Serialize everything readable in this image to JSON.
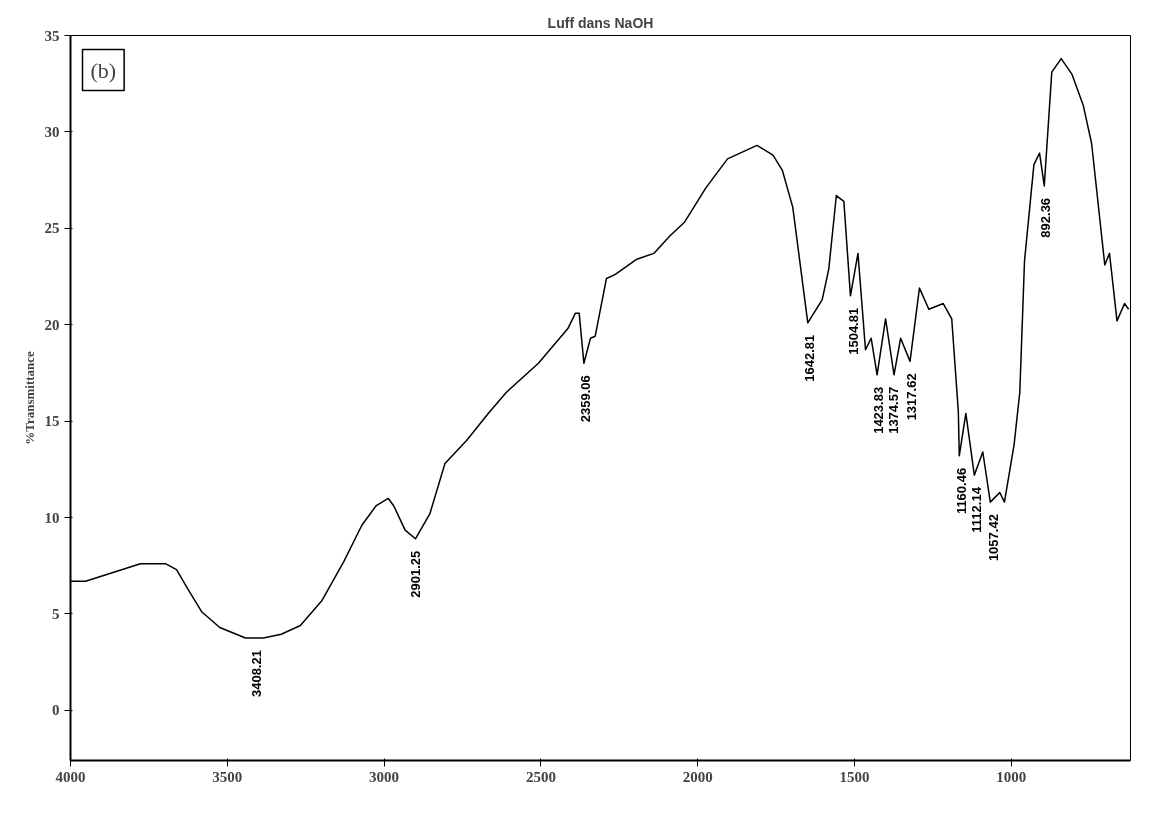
{
  "chart_data": {
    "type": "line",
    "title": "Luff dans NaOH",
    "ylabel": "%Transmittance",
    "x": [
      4000,
      3952,
      3777,
      3696,
      3662,
      3626,
      3581,
      3524,
      3442,
      3385,
      3328,
      3267,
      3198,
      3129,
      3071,
      3026,
      2987,
      2969,
      2933,
      2900,
      2854,
      2806,
      2737,
      2668,
      2610,
      2508,
      2414,
      2390,
      2378,
      2363,
      2342,
      2327,
      2291,
      2264,
      2194,
      2140,
      2089,
      2043,
      1974,
      1905,
      1811,
      1760,
      1730,
      1697,
      1649,
      1603,
      1582,
      1558,
      1534,
      1513,
      1489,
      1465,
      1447,
      1428,
      1401,
      1374,
      1353,
      1323,
      1293,
      1263,
      1217,
      1190,
      1169,
      1166,
      1145,
      1118,
      1091,
      1067,
      1037,
      1022,
      991,
      973,
      958,
      928,
      910,
      895,
      871,
      841,
      807,
      771,
      744,
      702,
      687,
      663,
      639,
      626
    ],
    "series": [
      {
        "color": "#000000",
        "values": [
          6.7,
          6.7,
          7.6,
          7.6,
          7.3,
          6.3,
          5.1,
          4.3,
          3.75,
          3.75,
          3.95,
          4.4,
          5.7,
          7.7,
          9.6,
          10.6,
          11.0,
          10.6,
          9.35,
          8.9,
          10.2,
          12.8,
          14.0,
          15.4,
          16.5,
          18.0,
          19.8,
          20.6,
          20.6,
          18.0,
          19.3,
          19.4,
          22.4,
          22.6,
          23.4,
          23.7,
          24.6,
          25.3,
          27.1,
          28.6,
          29.3,
          28.8,
          28.0,
          26.1,
          20.1,
          21.3,
          22.9,
          26.7,
          26.4,
          21.5,
          23.7,
          18.7,
          19.3,
          17.4,
          20.3,
          17.4,
          19.3,
          18.1,
          21.9,
          20.8,
          21.1,
          20.3,
          15.5,
          13.2,
          15.4,
          12.2,
          13.4,
          10.8,
          11.3,
          10.8,
          13.8,
          16.5,
          23.3,
          28.3,
          28.9,
          27.2,
          33.1,
          33.8,
          33.0,
          31.4,
          29.4,
          23.1,
          23.7,
          20.2,
          21.1,
          20.8
        ]
      }
    ],
    "xlim": [
      4000,
      620
    ],
    "ylim": [
      -2.6,
      35
    ],
    "xticks": [
      4000,
      3500,
      3000,
      2500,
      2000,
      1500,
      1000
    ],
    "yticks": [
      0,
      5,
      10,
      15,
      20,
      25,
      30,
      35
    ],
    "grid": false,
    "marker": "none",
    "line_style": "solid",
    "annotations": [
      "(b)",
      {
        "text": "3408.21",
        "x": 3408.21,
        "y": 3.75
      },
      {
        "text": "2901.25",
        "x": 2901.25,
        "y": 8.9
      },
      {
        "text": "2359.06",
        "x": 2359.06,
        "y": 18.0
      },
      {
        "text": "1642.81",
        "x": 1642.81,
        "y": 20.1
      },
      {
        "text": "1504.81",
        "x": 1504.81,
        "y": 21.5
      },
      {
        "text": "1423.83",
        "x": 1423.83,
        "y": 17.4
      },
      {
        "text": "1374.57",
        "x": 1374.57,
        "y": 17.4
      },
      {
        "text": "1317.62",
        "x": 1317.62,
        "y": 18.1
      },
      {
        "text": "1160.46",
        "x": 1160.46,
        "y": 13.2
      },
      {
        "text": "1112.14",
        "x": 1112.14,
        "y": 12.2
      },
      {
        "text": "1057.42",
        "x": 1057.42,
        "y": 10.8
      },
      {
        "text": "892.36",
        "x": 892.36,
        "y": 27.2
      }
    ]
  }
}
